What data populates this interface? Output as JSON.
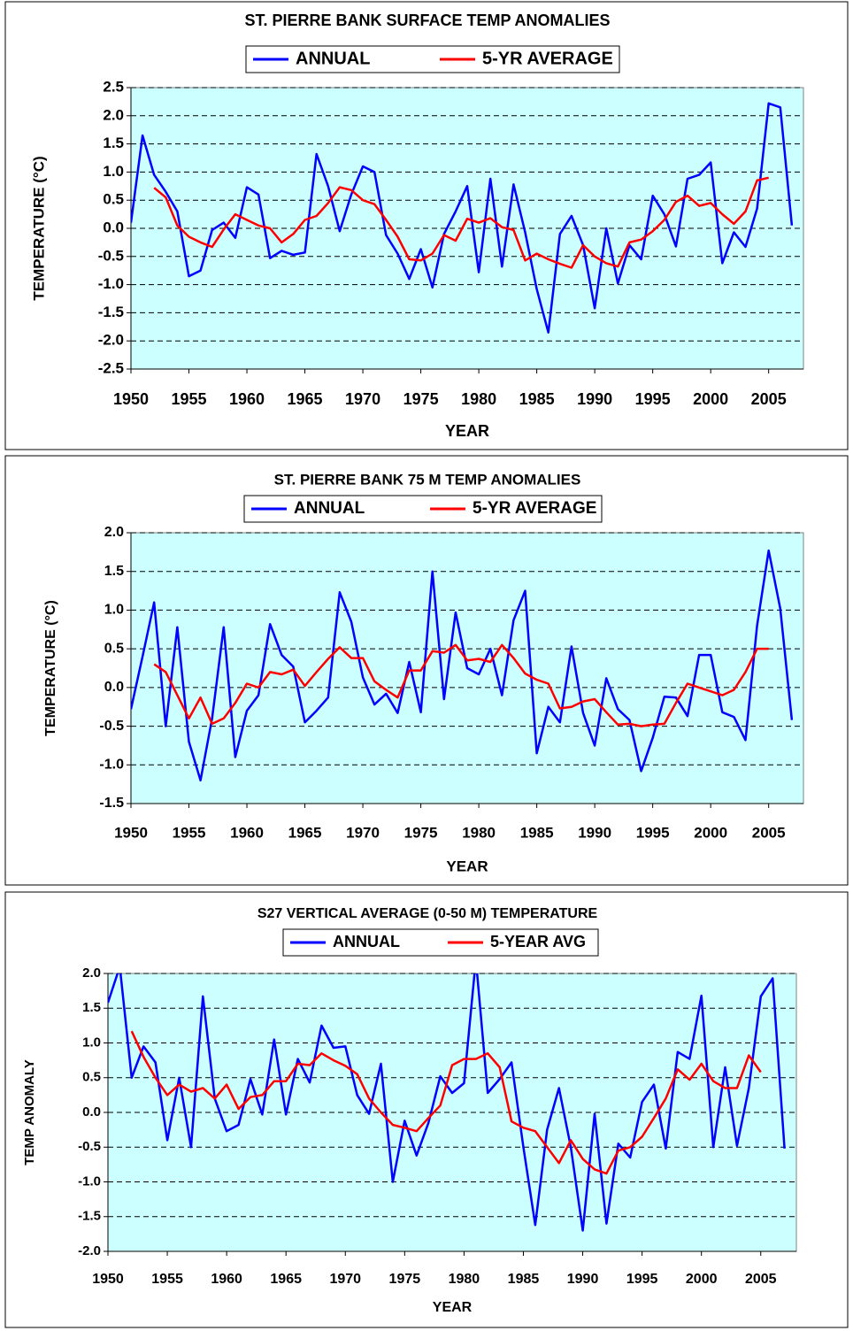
{
  "chart_data": [
    {
      "type": "line",
      "title": "ST. PIERRE BANK SURFACE TEMP ANOMALIES",
      "x_label": "YEAR",
      "y_label": "TEMPERATURE (°C)",
      "x": [
        1950,
        1951,
        1952,
        1953,
        1954,
        1955,
        1956,
        1957,
        1958,
        1959,
        1960,
        1961,
        1962,
        1963,
        1964,
        1965,
        1966,
        1967,
        1968,
        1969,
        1970,
        1971,
        1972,
        1973,
        1974,
        1975,
        1976,
        1977,
        1978,
        1979,
        1980,
        1981,
        1982,
        1983,
        1984,
        1985,
        1986,
        1987,
        1988,
        1989,
        1990,
        1991,
        1992,
        1993,
        1994,
        1995,
        1996,
        1997,
        1998,
        1999,
        2000,
        2001,
        2002,
        2003,
        2004,
        2005,
        2006,
        2007
      ],
      "series": [
        {
          "name": "ANNUAL",
          "color": "#0000ff",
          "values": [
            0.1,
            1.65,
            0.95,
            0.65,
            0.3,
            -0.85,
            -0.75,
            -0.03,
            0.1,
            -0.17,
            0.73,
            0.6,
            -0.53,
            -0.4,
            -0.47,
            -0.43,
            1.32,
            0.75,
            -0.05,
            0.6,
            1.1,
            1.0,
            -0.12,
            -0.45,
            -0.9,
            -0.37,
            -1.05,
            -0.1,
            0.3,
            0.75,
            -0.78,
            0.88,
            -0.68,
            0.78,
            -0.07,
            -1.08,
            -1.85,
            -0.1,
            0.22,
            -0.3,
            -1.42,
            0.0,
            -0.98,
            -0.3,
            -0.55,
            0.58,
            0.25,
            -0.32,
            0.88,
            0.95,
            1.17,
            -0.62,
            -0.07,
            -0.33,
            0.35,
            2.22,
            2.15,
            0.05
          ]
        },
        {
          "name": "5-YR AVERAGE",
          "color": "#ff0000",
          "values": [
            null,
            null,
            0.72,
            0.55,
            0.05,
            -0.15,
            -0.25,
            -0.33,
            -0.02,
            0.25,
            0.15,
            0.05,
            0.0,
            -0.25,
            -0.1,
            0.15,
            0.22,
            0.45,
            0.73,
            0.68,
            0.5,
            0.43,
            0.15,
            -0.15,
            -0.55,
            -0.57,
            -0.45,
            -0.12,
            -0.22,
            0.17,
            0.1,
            0.18,
            0.02,
            -0.03,
            -0.57,
            -0.45,
            -0.55,
            -0.63,
            -0.7,
            -0.3,
            -0.5,
            -0.62,
            -0.68,
            -0.25,
            -0.2,
            -0.05,
            0.15,
            0.47,
            0.58,
            0.4,
            0.45,
            0.25,
            0.08,
            0.3,
            0.85,
            0.9,
            null,
            null
          ]
        }
      ],
      "xlim": [
        1950,
        2008
      ],
      "xticks": [
        1950,
        1955,
        1960,
        1965,
        1970,
        1975,
        1980,
        1985,
        1990,
        1995,
        2000,
        2005
      ],
      "ylim": [
        -2.5,
        2.5
      ],
      "yticks": [
        {
          "value": -2.5,
          "label": "-2.5"
        },
        {
          "value": -2,
          "label": "-2.0"
        },
        {
          "value": -1.5,
          "label": "-1.5"
        },
        {
          "value": -1,
          "label": "-1.0"
        },
        {
          "value": -0.5,
          "label": "-0.5"
        },
        {
          "value": 0,
          "label": "0.0"
        },
        {
          "value": 0.5,
          "label": "0.5"
        },
        {
          "value": 1,
          "label": "1.0"
        },
        {
          "value": 1.5,
          "label": "1.5"
        },
        {
          "value": 2,
          "label": "2.0"
        },
        {
          "value": 2.5,
          "label": "2.5"
        }
      ],
      "grid": true,
      "background": "#ccffff"
    },
    {
      "type": "line",
      "title": "ST. PIERRE BANK 75 M TEMP ANOMALIES",
      "x_label": "YEAR",
      "y_label": "TEMPERATURE (°C)",
      "x": [
        1950,
        1951,
        1952,
        1953,
        1954,
        1955,
        1956,
        1957,
        1958,
        1959,
        1960,
        1961,
        1962,
        1963,
        1964,
        1965,
        1966,
        1967,
        1968,
        1969,
        1970,
        1971,
        1972,
        1973,
        1974,
        1975,
        1976,
        1977,
        1978,
        1979,
        1980,
        1981,
        1982,
        1983,
        1984,
        1985,
        1986,
        1987,
        1988,
        1989,
        1990,
        1991,
        1992,
        1993,
        1994,
        1995,
        1996,
        1997,
        1998,
        1999,
        2000,
        2001,
        2002,
        2003,
        2004,
        2005,
        2006,
        2007
      ],
      "series": [
        {
          "name": "ANNUAL",
          "color": "#0000ff",
          "values": [
            -0.28,
            0.4,
            1.1,
            -0.5,
            0.78,
            -0.7,
            -1.2,
            -0.4,
            0.78,
            -0.9,
            -0.3,
            -0.1,
            0.82,
            0.42,
            0.27,
            -0.45,
            -0.3,
            -0.13,
            1.23,
            0.85,
            0.13,
            -0.22,
            -0.08,
            -0.33,
            0.33,
            -0.32,
            1.5,
            -0.15,
            0.97,
            0.25,
            0.17,
            0.5,
            -0.1,
            0.87,
            1.25,
            -0.85,
            -0.25,
            -0.45,
            0.53,
            -0.33,
            -0.75,
            0.12,
            -0.28,
            -0.42,
            -1.08,
            -0.65,
            -0.12,
            -0.13,
            -0.37,
            0.42,
            0.42,
            -0.32,
            -0.38,
            -0.68,
            0.8,
            1.77,
            1.02,
            -0.42
          ]
        },
        {
          "name": "5-YR AVERAGE",
          "color": "#ff0000",
          "values": [
            null,
            null,
            0.3,
            0.2,
            -0.1,
            -0.4,
            -0.13,
            -0.47,
            -0.4,
            -0.2,
            0.05,
            0.0,
            0.2,
            0.17,
            0.23,
            0.02,
            0.2,
            0.37,
            0.52,
            0.38,
            0.38,
            0.08,
            -0.03,
            -0.13,
            0.22,
            0.22,
            0.47,
            0.45,
            0.55,
            0.35,
            0.37,
            0.33,
            0.55,
            0.38,
            0.18,
            0.1,
            0.05,
            -0.27,
            -0.25,
            -0.18,
            -0.15,
            -0.32,
            -0.48,
            -0.47,
            -0.5,
            -0.48,
            -0.47,
            -0.2,
            0.05,
            0.0,
            -0.05,
            -0.1,
            -0.03,
            0.2,
            0.5,
            0.5,
            null,
            null
          ]
        }
      ],
      "xlim": [
        1950,
        2008
      ],
      "xticks": [
        1950,
        1955,
        1960,
        1965,
        1970,
        1975,
        1980,
        1985,
        1990,
        1995,
        2000,
        2005
      ],
      "ylim": [
        -1.5,
        2
      ],
      "yticks": [
        {
          "value": -1.5,
          "label": "-1.5"
        },
        {
          "value": -1,
          "label": "-1.0"
        },
        {
          "value": -0.5,
          "label": "-0.5"
        },
        {
          "value": 0,
          "label": "0.0"
        },
        {
          "value": 0.5,
          "label": "0.5"
        },
        {
          "value": 1,
          "label": "1.0"
        },
        {
          "value": 1.5,
          "label": "1.5"
        },
        {
          "value": 2,
          "label": "2.0"
        }
      ],
      "grid": true,
      "background": "#ccffff"
    },
    {
      "type": "line",
      "title": "S27 VERTICAL AVERAGE (0-50 M) TEMPERATURE",
      "x_label": "YEAR",
      "y_label": "TEMP ANOMALY",
      "x": [
        1950,
        1951,
        1952,
        1953,
        1954,
        1955,
        1956,
        1957,
        1958,
        1959,
        1960,
        1961,
        1962,
        1963,
        1964,
        1965,
        1966,
        1967,
        1968,
        1969,
        1970,
        1971,
        1972,
        1973,
        1974,
        1975,
        1976,
        1977,
        1978,
        1979,
        1980,
        1981,
        1982,
        1983,
        1984,
        1985,
        1986,
        1987,
        1988,
        1989,
        1990,
        1991,
        1992,
        1993,
        1994,
        1995,
        1996,
        1997,
        1998,
        1999,
        2000,
        2001,
        2002,
        2003,
        2004,
        2005,
        2006,
        2007
      ],
      "series": [
        {
          "name": "ANNUAL",
          "color": "#0000ff",
          "values": [
            1.58,
            2.1,
            0.5,
            0.95,
            0.72,
            -0.4,
            0.5,
            -0.5,
            1.67,
            0.2,
            -0.27,
            -0.18,
            0.48,
            -0.03,
            1.05,
            -0.03,
            0.77,
            0.43,
            1.25,
            0.93,
            0.95,
            0.25,
            -0.02,
            0.7,
            -1.0,
            -0.12,
            -0.62,
            -0.15,
            0.52,
            0.28,
            0.42,
            2.2,
            0.28,
            0.48,
            0.72,
            -0.5,
            -1.62,
            -0.25,
            0.35,
            -0.5,
            -1.7,
            -0.02,
            -1.6,
            -0.45,
            -0.65,
            0.15,
            0.4,
            -0.52,
            0.87,
            0.77,
            1.68,
            -0.5,
            0.65,
            -0.48,
            0.35,
            1.67,
            1.93,
            -0.52
          ]
        },
        {
          "name": "5-YEAR AVG",
          "color": "#ff0000",
          "values": [
            null,
            null,
            1.17,
            0.8,
            0.5,
            0.25,
            0.4,
            0.3,
            0.35,
            0.2,
            0.4,
            0.05,
            0.22,
            0.25,
            0.45,
            0.45,
            0.7,
            0.68,
            0.85,
            0.75,
            0.67,
            0.55,
            0.2,
            0.0,
            -0.18,
            -0.22,
            -0.27,
            -0.08,
            0.1,
            0.68,
            0.77,
            0.77,
            0.85,
            0.65,
            -0.13,
            -0.22,
            -0.27,
            -0.5,
            -0.73,
            -0.4,
            -0.67,
            -0.82,
            -0.88,
            -0.55,
            -0.5,
            -0.35,
            -0.08,
            0.2,
            0.62,
            0.47,
            0.7,
            0.45,
            0.35,
            0.35,
            0.82,
            0.58,
            null,
            null
          ]
        }
      ],
      "xlim": [
        1950,
        2008
      ],
      "xticks": [
        1950,
        1955,
        1960,
        1965,
        1970,
        1975,
        1980,
        1985,
        1990,
        1995,
        2000,
        2005
      ],
      "ylim": [
        -2,
        2
      ],
      "yticks": [
        {
          "value": -2,
          "label": "-2.0"
        },
        {
          "value": -1.5,
          "label": "-1.5"
        },
        {
          "value": -1,
          "label": "-1.0"
        },
        {
          "value": -0.5,
          "label": "-0.5"
        },
        {
          "value": 0,
          "label": "0.0"
        },
        {
          "value": 0.5,
          "label": "0.5"
        },
        {
          "value": 1,
          "label": "1.0"
        },
        {
          "value": 1.5,
          "label": "1.5"
        },
        {
          "value": 2,
          "label": "2.0"
        }
      ],
      "grid": true,
      "background": "#ccffff"
    }
  ]
}
